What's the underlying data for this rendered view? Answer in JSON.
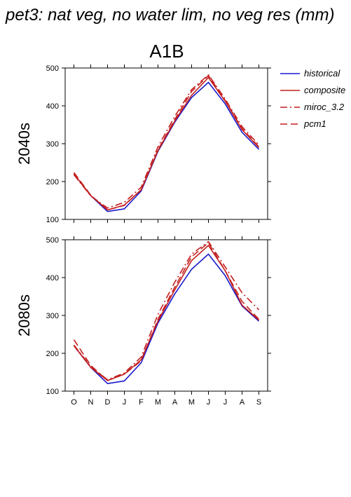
{
  "title": "pet3: nat veg, no water lim, no veg res (mm)",
  "column_title": "A1B",
  "colors": {
    "historical": "#1a1acc",
    "scenario": "#c41f1f"
  },
  "legend": [
    {
      "label": "historical",
      "style": "solid",
      "color": "#1a1acc"
    },
    {
      "label": "composite",
      "style": "solid",
      "color": "#c41f1f"
    },
    {
      "label": "miroc_3.2",
      "style": "dashdot",
      "color": "#c41f1f"
    },
    {
      "label": "pcm1",
      "style": "dashed",
      "color": "#c41f1f"
    }
  ],
  "chart_data": [
    {
      "type": "line",
      "row_label": "2040s",
      "categories": [
        "O",
        "N",
        "D",
        "J",
        "F",
        "M",
        "A",
        "M",
        "J",
        "J",
        "A",
        "S"
      ],
      "ylim": [
        100,
        500
      ],
      "yticks": [
        100,
        200,
        300,
        400,
        500
      ],
      "series": [
        {
          "name": "historical",
          "style": "solid",
          "values": [
            220,
            163,
            121,
            128,
            175,
            280,
            357,
            422,
            462,
            405,
            330,
            285
          ]
        },
        {
          "name": "composite",
          "style": "solid",
          "values": [
            220,
            163,
            125,
            138,
            178,
            282,
            360,
            428,
            475,
            412,
            337,
            290
          ]
        },
        {
          "name": "miroc_3.2",
          "style": "dashdot",
          "values": [
            218,
            162,
            130,
            145,
            185,
            292,
            372,
            443,
            482,
            418,
            345,
            297
          ]
        },
        {
          "name": "pcm1",
          "style": "dashed",
          "values": [
            224,
            164,
            125,
            137,
            178,
            284,
            364,
            438,
            480,
            414,
            340,
            292
          ]
        }
      ]
    },
    {
      "type": "line",
      "row_label": "2080s",
      "categories": [
        "O",
        "N",
        "D",
        "J",
        "F",
        "M",
        "A",
        "M",
        "J",
        "J",
        "A",
        "S"
      ],
      "ylim": [
        100,
        500
      ],
      "yticks": [
        100,
        200,
        300,
        400,
        500
      ],
      "series": [
        {
          "name": "historical",
          "style": "solid",
          "values": [
            220,
            163,
            120,
            127,
            175,
            280,
            357,
            422,
            462,
            405,
            325,
            285
          ]
        },
        {
          "name": "composite",
          "style": "solid",
          "values": [
            220,
            163,
            128,
            145,
            183,
            285,
            368,
            445,
            485,
            418,
            327,
            288
          ]
        },
        {
          "name": "miroc_3.2",
          "style": "dashdot",
          "values": [
            222,
            165,
            130,
            148,
            190,
            303,
            388,
            462,
            495,
            428,
            360,
            315
          ]
        },
        {
          "name": "pcm1",
          "style": "dashed",
          "values": [
            236,
            168,
            128,
            145,
            180,
            290,
            375,
            455,
            492,
            418,
            337,
            290
          ]
        }
      ]
    }
  ]
}
